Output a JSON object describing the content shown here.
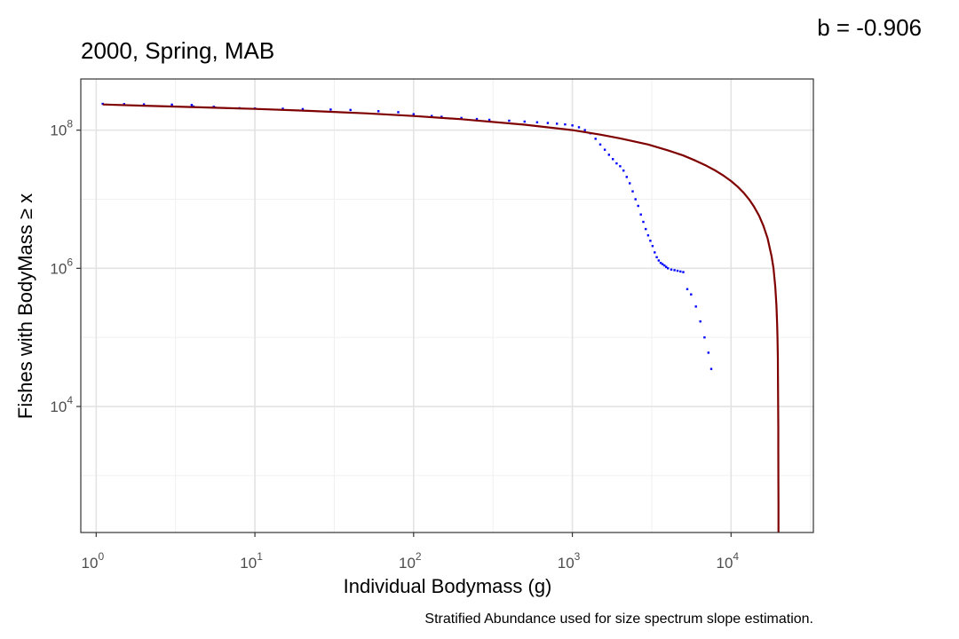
{
  "annotation": "b = -0.906",
  "caption": "Stratified Abundance used for size spectrum slope estimation.",
  "chart_data": {
    "type": "scatter",
    "title": "2000, Spring, MAB",
    "xlabel": "Individual Bodymass (g)",
    "ylabel": "Fishes with BodyMass ≥ x",
    "x_scale": "log10",
    "y_scale": "log10",
    "xlim": [
      0.8,
      33000
    ],
    "ylim": [
      150,
      550000000
    ],
    "grid": true,
    "x_ticks": [
      {
        "value": 1,
        "base": "10",
        "exp": "0"
      },
      {
        "value": 10,
        "base": "10",
        "exp": "1"
      },
      {
        "value": 100,
        "base": "10",
        "exp": "2"
      },
      {
        "value": 1000,
        "base": "10",
        "exp": "3"
      },
      {
        "value": 10000,
        "base": "10",
        "exp": "4"
      }
    ],
    "y_ticks": [
      {
        "value": 10000,
        "base": "10",
        "exp": "4"
      },
      {
        "value": 1000000,
        "base": "10",
        "exp": "6"
      },
      {
        "value": 100000000,
        "base": "10",
        "exp": "8"
      }
    ],
    "series": [
      {
        "kind": "points",
        "color": "#0000ff",
        "x": [
          1.1,
          1.5,
          2,
          3,
          4,
          4.1,
          5.5,
          5.6,
          8,
          10,
          15,
          20,
          30,
          40,
          60,
          80,
          100,
          130,
          150,
          200,
          250,
          300,
          400,
          500,
          600,
          700,
          800,
          900,
          1000,
          1100,
          1200,
          1300,
          1400,
          1500,
          1600,
          1700,
          1800,
          1900,
          2000,
          2100,
          2200,
          2300,
          2400,
          2500,
          2600,
          2700,
          2800,
          2900,
          3000,
          3100,
          3200,
          3300,
          3400,
          3500,
          3600,
          3700,
          3800,
          3900,
          4000,
          4200,
          4400,
          4600,
          4800,
          5000,
          5300,
          5600,
          6000,
          6400,
          6800,
          7200,
          7500
        ],
        "y": [
          240000000,
          238000000,
          236000000,
          234000000,
          231000000,
          220000000,
          218000000,
          212000000,
          208000000,
          206000000,
          204000000,
          202000000,
          199000000,
          196000000,
          188000000,
          182000000,
          170000000,
          160000000,
          156000000,
          150000000,
          145000000,
          141000000,
          137000000,
          133000000,
          130000000,
          127000000,
          124000000,
          121000000,
          117000000,
          110000000,
          100000000,
          90000000,
          75000000,
          62000000,
          52000000,
          44000000,
          38000000,
          33000000,
          30000000,
          26000000,
          21000000,
          17000000,
          13000000,
          10000000,
          8000000,
          6000000,
          4700000,
          3700000,
          3000000,
          2500000,
          2100000,
          1700000,
          1450000,
          1300000,
          1200000,
          1150000,
          1100000,
          1050000,
          1000000,
          960000,
          940000,
          920000,
          900000,
          880000,
          500000,
          420000,
          280000,
          170000,
          100000,
          60000,
          35000
        ]
      },
      {
        "kind": "line",
        "color": "#7f0000",
        "x": [
          1.1,
          2,
          5,
          10,
          20,
          50,
          100,
          200,
          500,
          1000,
          1500,
          2000,
          3000,
          4000,
          5000,
          6000,
          7000,
          8000,
          9000,
          10000,
          11000,
          12000,
          13000,
          14000,
          15000,
          16000,
          17000,
          18000,
          18500,
          19000,
          19300,
          19500,
          19600,
          19700,
          19750,
          19800,
          19830,
          19850,
          19870,
          19880,
          19890
        ],
        "y": [
          235000000,
          226000000,
          213000000,
          203000000,
          192000000,
          175000000,
          160000000,
          144000000,
          120000000,
          100000000,
          86000000,
          76000000,
          62000000,
          51000000,
          43000000,
          36000000,
          30500000,
          25800000,
          21800000,
          18300000,
          15200000,
          12400000,
          9900000,
          7700000,
          5800000,
          4100000,
          2700000,
          1500000,
          1000000,
          540000,
          290000,
          155000,
          98000,
          50000,
          29000,
          12000,
          5000,
          2500,
          800,
          400,
          150
        ]
      }
    ]
  }
}
